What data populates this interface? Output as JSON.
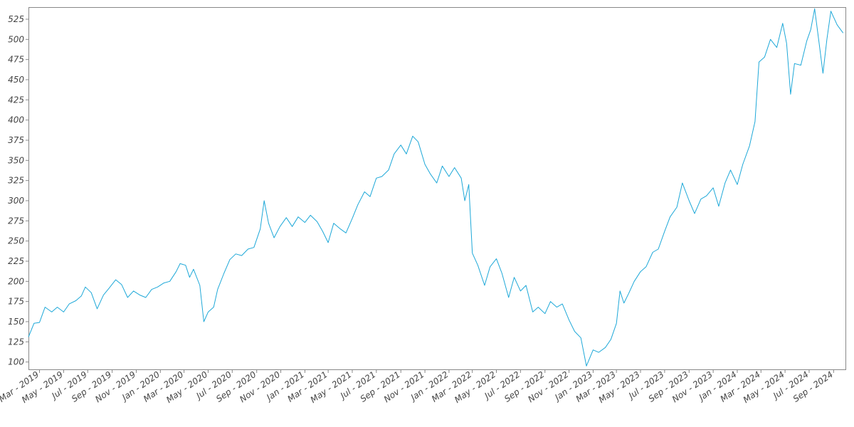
{
  "chart_data": {
    "type": "line",
    "title": "",
    "xlabel": "",
    "ylabel": "",
    "ylim": [
      90,
      540
    ],
    "xlim": [
      "2019-02-01",
      "2024-10-01"
    ],
    "grid": false,
    "legend": "none",
    "line_color": "#1ea8d8",
    "y_ticks": [
      100,
      125,
      150,
      175,
      200,
      225,
      250,
      275,
      300,
      325,
      350,
      375,
      400,
      425,
      450,
      475,
      500,
      525
    ],
    "x_ticks": [
      {
        "date": "2019-03-01",
        "label": "Mar - 2019"
      },
      {
        "date": "2019-05-01",
        "label": "May - 2019"
      },
      {
        "date": "2019-07-01",
        "label": "Jul - 2019"
      },
      {
        "date": "2019-09-01",
        "label": "Sep - 2019"
      },
      {
        "date": "2019-11-01",
        "label": "Nov - 2019"
      },
      {
        "date": "2020-01-01",
        "label": "Jan - 2020"
      },
      {
        "date": "2020-03-01",
        "label": "Mar - 2020"
      },
      {
        "date": "2020-05-01",
        "label": "May - 2020"
      },
      {
        "date": "2020-07-01",
        "label": "Jul - 2020"
      },
      {
        "date": "2020-09-01",
        "label": "Sep - 2020"
      },
      {
        "date": "2020-11-01",
        "label": "Nov - 2020"
      },
      {
        "date": "2021-01-01",
        "label": "Jan - 2021"
      },
      {
        "date": "2021-03-01",
        "label": "Mar - 2021"
      },
      {
        "date": "2021-05-01",
        "label": "May - 2021"
      },
      {
        "date": "2021-07-01",
        "label": "Jul - 2021"
      },
      {
        "date": "2021-09-01",
        "label": "Sep - 2021"
      },
      {
        "date": "2021-11-01",
        "label": "Nov - 2021"
      },
      {
        "date": "2022-01-01",
        "label": "Jan - 2022"
      },
      {
        "date": "2022-03-01",
        "label": "Mar - 2022"
      },
      {
        "date": "2022-05-01",
        "label": "May - 2022"
      },
      {
        "date": "2022-07-01",
        "label": "Jul - 2022"
      },
      {
        "date": "2022-09-01",
        "label": "Sep - 2022"
      },
      {
        "date": "2022-11-01",
        "label": "Nov - 2022"
      },
      {
        "date": "2023-01-01",
        "label": "Jan - 2023"
      },
      {
        "date": "2023-03-01",
        "label": "Mar - 2023"
      },
      {
        "date": "2023-05-01",
        "label": "May - 2023"
      },
      {
        "date": "2023-07-01",
        "label": "Jul - 2023"
      },
      {
        "date": "2023-09-01",
        "label": "Sep - 2023"
      },
      {
        "date": "2023-11-01",
        "label": "Nov - 2023"
      },
      {
        "date": "2024-01-01",
        "label": "Jan - 2024"
      },
      {
        "date": "2024-03-01",
        "label": "Mar - 2024"
      },
      {
        "date": "2024-05-01",
        "label": "May - 2024"
      },
      {
        "date": "2024-07-01",
        "label": "Jul - 2024"
      },
      {
        "date": "2024-09-01",
        "label": "Sep - 2024"
      }
    ],
    "series": [
      {
        "values": [
          [
            "2019-02-01",
            131
          ],
          [
            "2019-02-15",
            148
          ],
          [
            "2019-03-01",
            149
          ],
          [
            "2019-03-15",
            168
          ],
          [
            "2019-04-01",
            162
          ],
          [
            "2019-04-15",
            168
          ],
          [
            "2019-05-01",
            162
          ],
          [
            "2019-05-15",
            172
          ],
          [
            "2019-06-01",
            176
          ],
          [
            "2019-06-15",
            182
          ],
          [
            "2019-06-25",
            193
          ],
          [
            "2019-07-10",
            186
          ],
          [
            "2019-07-25",
            166
          ],
          [
            "2019-08-10",
            183
          ],
          [
            "2019-08-25",
            192
          ],
          [
            "2019-09-10",
            202
          ],
          [
            "2019-09-25",
            196
          ],
          [
            "2019-10-10",
            180
          ],
          [
            "2019-10-25",
            188
          ],
          [
            "2019-11-10",
            183
          ],
          [
            "2019-11-25",
            180
          ],
          [
            "2019-12-10",
            190
          ],
          [
            "2019-12-25",
            193
          ],
          [
            "2020-01-10",
            198
          ],
          [
            "2020-01-25",
            200
          ],
          [
            "2020-02-10",
            212
          ],
          [
            "2020-02-20",
            222
          ],
          [
            "2020-03-05",
            220
          ],
          [
            "2020-03-15",
            205
          ],
          [
            "2020-03-25",
            215
          ],
          [
            "2020-04-10",
            195
          ],
          [
            "2020-04-20",
            150
          ],
          [
            "2020-05-01",
            162
          ],
          [
            "2020-05-15",
            168
          ],
          [
            "2020-05-25",
            190
          ],
          [
            "2020-06-10",
            210
          ],
          [
            "2020-06-25",
            227
          ],
          [
            "2020-07-10",
            234
          ],
          [
            "2020-07-25",
            232
          ],
          [
            "2020-08-10",
            240
          ],
          [
            "2020-08-25",
            242
          ],
          [
            "2020-09-10",
            265
          ],
          [
            "2020-09-20",
            300
          ],
          [
            "2020-10-01",
            272
          ],
          [
            "2020-10-15",
            254
          ],
          [
            "2020-10-30",
            268
          ],
          [
            "2020-11-15",
            279
          ],
          [
            "2020-11-30",
            268
          ],
          [
            "2020-12-15",
            280
          ],
          [
            "2021-01-01",
            273
          ],
          [
            "2021-01-15",
            282
          ],
          [
            "2021-02-01",
            274
          ],
          [
            "2021-02-15",
            262
          ],
          [
            "2021-03-01",
            248
          ],
          [
            "2021-03-15",
            272
          ],
          [
            "2021-04-01",
            265
          ],
          [
            "2021-04-15",
            260
          ],
          [
            "2021-05-01",
            278
          ],
          [
            "2021-05-15",
            295
          ],
          [
            "2021-06-01",
            311
          ],
          [
            "2021-06-15",
            305
          ],
          [
            "2021-07-01",
            328
          ],
          [
            "2021-07-15",
            330
          ],
          [
            "2021-08-01",
            338
          ],
          [
            "2021-08-15",
            358
          ],
          [
            "2021-09-01",
            369
          ],
          [
            "2021-09-15",
            358
          ],
          [
            "2021-10-01",
            380
          ],
          [
            "2021-10-15",
            373
          ],
          [
            "2021-11-01",
            345
          ],
          [
            "2021-11-15",
            333
          ],
          [
            "2021-12-01",
            322
          ],
          [
            "2021-12-15",
            343
          ],
          [
            "2022-01-01",
            330
          ],
          [
            "2022-01-15",
            341
          ],
          [
            "2022-02-01",
            328
          ],
          [
            "2022-02-10",
            300
          ],
          [
            "2022-02-20",
            320
          ],
          [
            "2022-03-01",
            235
          ],
          [
            "2022-03-15",
            220
          ],
          [
            "2022-04-01",
            195
          ],
          [
            "2022-04-15",
            218
          ],
          [
            "2022-05-01",
            228
          ],
          [
            "2022-05-15",
            210
          ],
          [
            "2022-06-01",
            180
          ],
          [
            "2022-06-15",
            205
          ],
          [
            "2022-07-01",
            188
          ],
          [
            "2022-07-15",
            195
          ],
          [
            "2022-08-01",
            162
          ],
          [
            "2022-08-15",
            168
          ],
          [
            "2022-09-01",
            160
          ],
          [
            "2022-09-15",
            175
          ],
          [
            "2022-10-01",
            168
          ],
          [
            "2022-10-15",
            172
          ],
          [
            "2022-11-01",
            152
          ],
          [
            "2022-11-15",
            138
          ],
          [
            "2022-12-01",
            130
          ],
          [
            "2022-12-15",
            95
          ],
          [
            "2023-01-01",
            115
          ],
          [
            "2023-01-15",
            112
          ],
          [
            "2023-02-01",
            118
          ],
          [
            "2023-02-15",
            128
          ],
          [
            "2023-03-01",
            148
          ],
          [
            "2023-03-10",
            188
          ],
          [
            "2023-03-20",
            173
          ],
          [
            "2023-04-01",
            185
          ],
          [
            "2023-04-15",
            200
          ],
          [
            "2023-05-01",
            212
          ],
          [
            "2023-05-15",
            218
          ],
          [
            "2023-06-01",
            236
          ],
          [
            "2023-06-15",
            240
          ],
          [
            "2023-07-01",
            262
          ],
          [
            "2023-07-15",
            280
          ],
          [
            "2023-08-01",
            292
          ],
          [
            "2023-08-15",
            322
          ],
          [
            "2023-09-01",
            300
          ],
          [
            "2023-09-15",
            284
          ],
          [
            "2023-10-01",
            302
          ],
          [
            "2023-10-15",
            306
          ],
          [
            "2023-11-01",
            316
          ],
          [
            "2023-11-15",
            293
          ],
          [
            "2023-12-01",
            322
          ],
          [
            "2023-12-15",
            338
          ],
          [
            "2024-01-01",
            320
          ],
          [
            "2024-01-15",
            345
          ],
          [
            "2024-02-01",
            368
          ],
          [
            "2024-02-15",
            398
          ],
          [
            "2024-02-25",
            472
          ],
          [
            "2024-03-10",
            478
          ],
          [
            "2024-03-25",
            500
          ],
          [
            "2024-04-10",
            490
          ],
          [
            "2024-04-25",
            520
          ],
          [
            "2024-05-05",
            495
          ],
          [
            "2024-05-15",
            432
          ],
          [
            "2024-05-25",
            470
          ],
          [
            "2024-06-10",
            468
          ],
          [
            "2024-06-25",
            498
          ],
          [
            "2024-07-05",
            512
          ],
          [
            "2024-07-15",
            538
          ],
          [
            "2024-07-25",
            500
          ],
          [
            "2024-08-05",
            458
          ],
          [
            "2024-08-15",
            500
          ],
          [
            "2024-08-25",
            535
          ],
          [
            "2024-09-10",
            518
          ],
          [
            "2024-09-25",
            508
          ]
        ]
      }
    ]
  }
}
